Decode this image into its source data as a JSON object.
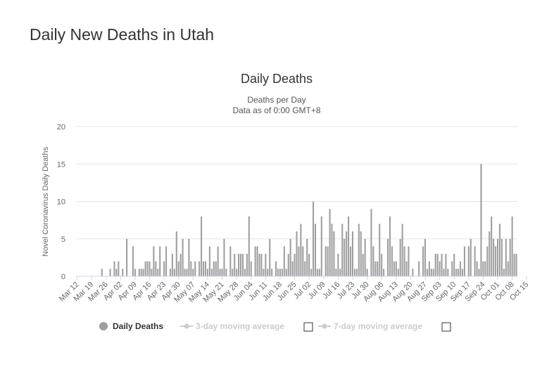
{
  "page": {
    "title": "Daily New Deaths in Utah"
  },
  "colors": {
    "bar": "#9e9e9e",
    "legend_active": "#333333",
    "legend_inactive": "#cccccc",
    "grid": "#e6e6e6"
  },
  "chart_data": {
    "type": "bar",
    "title": "Daily Deaths",
    "subtitle_lines": [
      "Deaths per Day",
      "Data as of 0:00 GMT+8"
    ],
    "xlabel": "",
    "ylabel": "Novel Coronavirus Daily Deaths",
    "ylim": [
      0,
      20
    ],
    "yticks": [
      0,
      5,
      10,
      15,
      20
    ],
    "grid": true,
    "start_date": "2020-03-12",
    "tick_labels": [
      "Mar 12",
      "Mar 19",
      "Mar 26",
      "Apr 02",
      "Apr 09",
      "Apr 16",
      "Apr 23",
      "Apr 30",
      "May 07",
      "May 14",
      "May 21",
      "May 28",
      "Jun 04",
      "Jun 11",
      "Jun 18",
      "Jun 25",
      "Jul 02",
      "Jul 09",
      "Jul 16",
      "Jul 23",
      "Jul 30",
      "Aug 06",
      "Aug 13",
      "Aug 20",
      "Aug 27",
      "Sep 03",
      "Sep 10",
      "Sep 17",
      "Sep 24",
      "Oct 01",
      "Oct 08",
      "Oct 15"
    ],
    "series": [
      {
        "name": "Daily Deaths",
        "values": [
          0,
          0,
          0,
          0,
          0,
          0,
          0,
          0,
          0,
          0,
          0,
          0,
          1,
          0,
          0,
          0,
          1,
          0,
          2,
          1,
          2,
          0,
          1,
          0,
          5,
          0,
          0,
          4,
          1,
          0,
          1,
          1,
          1,
          2,
          2,
          2,
          1,
          4,
          2,
          1,
          4,
          0,
          2,
          4,
          0,
          1,
          3,
          1,
          6,
          2,
          3,
          5,
          1,
          1,
          5,
          2,
          1,
          2,
          0,
          2,
          8,
          2,
          2,
          1,
          4,
          1,
          2,
          2,
          4,
          1,
          1,
          5,
          1,
          0,
          4,
          1,
          3,
          1,
          3,
          3,
          3,
          1,
          3,
          8,
          2,
          0,
          4,
          4,
          3,
          3,
          1,
          3,
          1,
          5,
          1,
          0,
          2,
          1,
          1,
          1,
          4,
          1,
          3,
          5,
          2,
          3,
          6,
          4,
          7,
          4,
          2,
          5,
          3,
          1,
          10,
          7,
          1,
          1,
          8,
          0,
          4,
          4,
          9,
          7,
          6,
          1,
          3,
          1,
          7,
          5,
          6,
          8,
          4,
          6,
          1,
          1,
          7,
          6,
          3,
          5,
          1,
          0,
          9,
          4,
          2,
          2,
          7,
          3,
          1,
          0,
          5,
          8,
          4,
          2,
          2,
          1,
          5,
          7,
          4,
          2,
          4,
          0,
          1,
          0,
          0,
          2,
          0,
          4,
          5,
          1,
          2,
          1,
          1,
          3,
          3,
          2,
          3,
          1,
          3,
          1,
          0,
          2,
          3,
          1,
          1,
          2,
          1,
          4,
          0,
          4,
          5,
          0,
          4,
          2,
          1,
          15,
          2,
          2,
          4,
          6,
          8,
          5,
          4,
          5,
          7,
          5,
          1,
          5,
          2,
          5,
          8,
          3,
          3
        ]
      }
    ],
    "legend": {
      "position": "bottom",
      "items": [
        {
          "label": "Daily Deaths",
          "active": true
        },
        {
          "label": "3-day moving average",
          "active": false
        },
        {
          "label": "7-day moving average",
          "active": false
        }
      ]
    }
  }
}
